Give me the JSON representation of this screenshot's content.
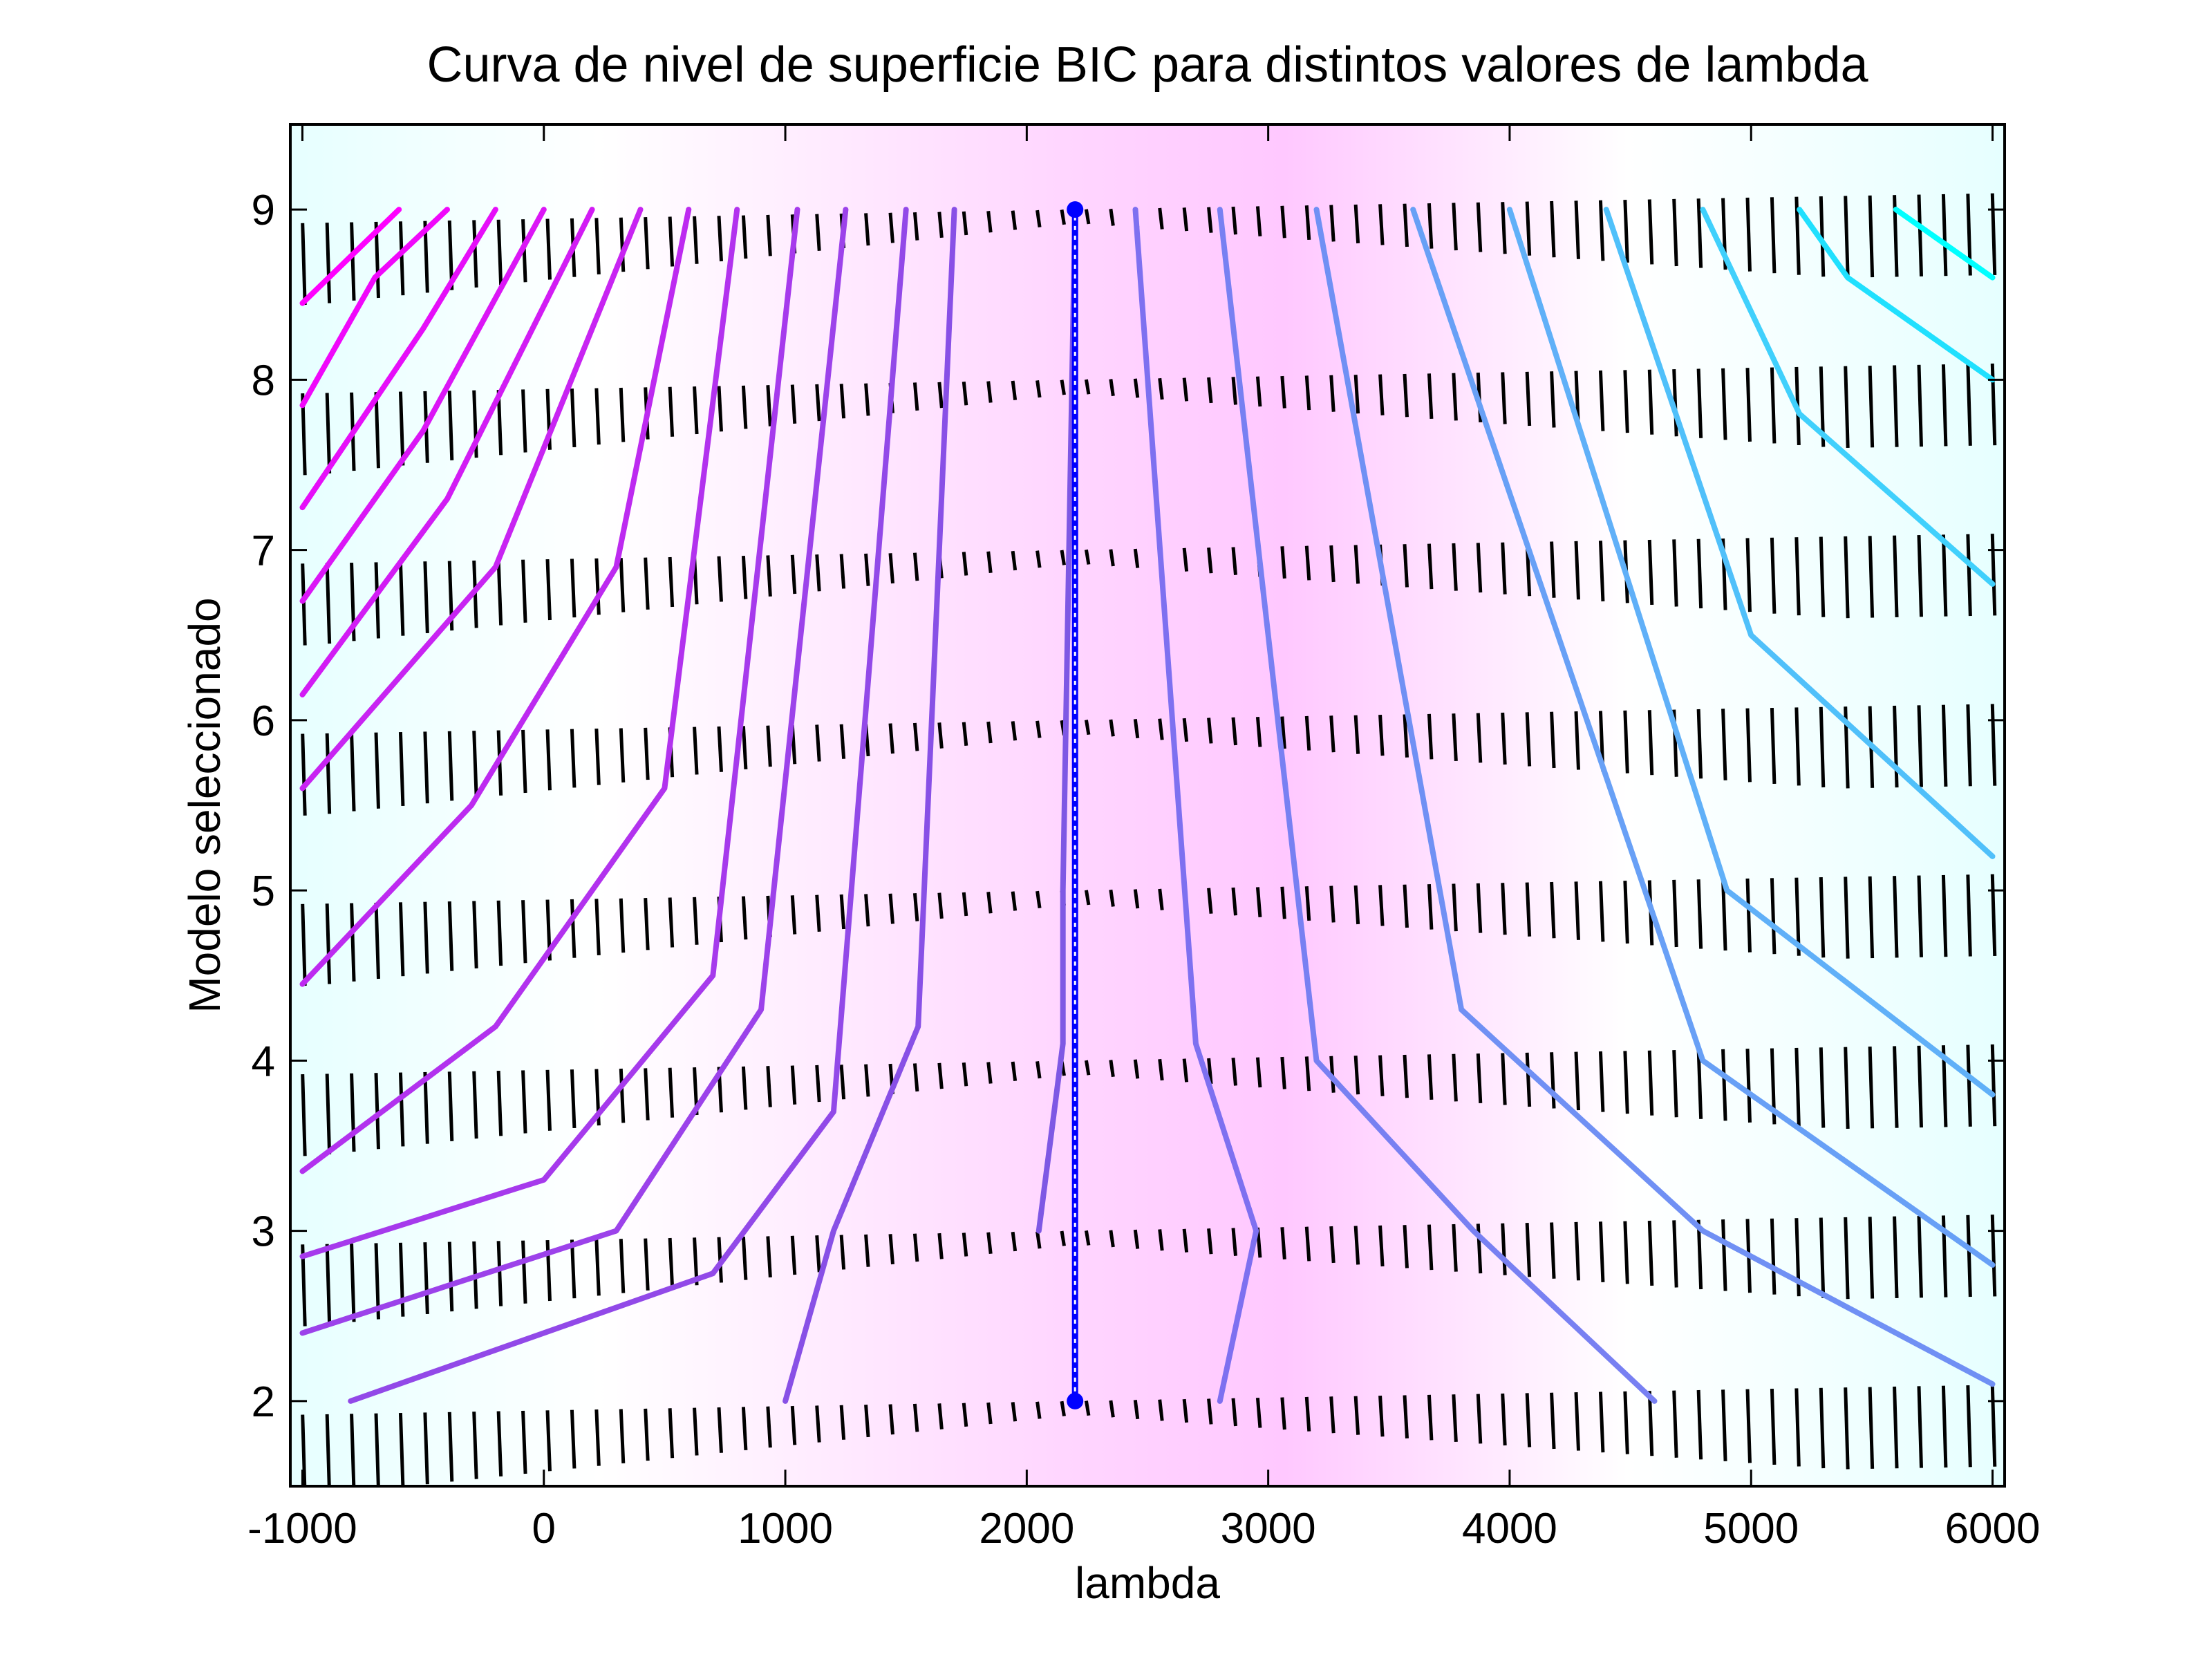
{
  "chart_data": {
    "type": "contour",
    "title": "Curva de nivel de superficie BIC para distintos valores de lambda",
    "xlabel": "lambda",
    "ylabel": "Modelo seleccionado",
    "xlim": [
      -1050,
      6050
    ],
    "ylim": [
      1.5,
      9.5
    ],
    "xticks": [
      -1000,
      0,
      1000,
      2000,
      3000,
      4000,
      5000,
      6000
    ],
    "yticks": [
      2,
      3,
      4,
      5,
      6,
      7,
      8,
      9
    ],
    "xtick_labels": [
      "-1000",
      "0",
      "1000",
      "2000",
      "3000",
      "4000",
      "5000",
      "6000"
    ],
    "ytick_labels": [
      "2",
      "3",
      "4",
      "5",
      "6",
      "7",
      "8",
      "9"
    ],
    "grid": false,
    "legend": "none",
    "colormap": [
      "#ff00ff",
      "#8080ff",
      "#00ffff"
    ],
    "background_colors": {
      "low": "#e6ffff",
      "high": "#ffc0ff"
    },
    "minimum_line": {
      "lambda": 2200,
      "models": [
        2,
        3,
        4,
        5,
        6,
        7,
        8,
        9
      ],
      "color": "#0000ff"
    },
    "level_curves": [
      {
        "color": "#ff00ff",
        "points": [
          [
            -1000,
            8.45
          ],
          [
            -600,
            9
          ]
        ]
      },
      {
        "color": "#f008fb",
        "points": [
          [
            -1000,
            7.85
          ],
          [
            -700,
            8.6
          ],
          [
            -400,
            9
          ]
        ]
      },
      {
        "color": "#e60ef9",
        "points": [
          [
            -1000,
            7.25
          ],
          [
            -500,
            8.3
          ],
          [
            -200,
            9
          ]
        ]
      },
      {
        "color": "#db16f6",
        "points": [
          [
            -1000,
            6.7
          ],
          [
            -500,
            7.7
          ],
          [
            0,
            9
          ]
        ]
      },
      {
        "color": "#d21cf4",
        "points": [
          [
            -1000,
            6.15
          ],
          [
            -400,
            7.3
          ],
          [
            200,
            9
          ]
        ]
      },
      {
        "color": "#c824f2",
        "points": [
          [
            -1000,
            5.6
          ],
          [
            -200,
            6.9
          ],
          [
            400,
            9
          ]
        ]
      },
      {
        "color": "#bd2af0",
        "points": [
          [
            -1000,
            4.45
          ],
          [
            -300,
            5.5
          ],
          [
            300,
            6.9
          ],
          [
            600,
            9
          ]
        ]
      },
      {
        "color": "#b232ee",
        "points": [
          [
            -1000,
            3.35
          ],
          [
            -200,
            4.2
          ],
          [
            500,
            5.6
          ],
          [
            800,
            9
          ]
        ]
      },
      {
        "color": "#a63aec",
        "points": [
          [
            -1000,
            2.85
          ],
          [
            0,
            3.3
          ],
          [
            700,
            4.5
          ],
          [
            1050,
            9
          ]
        ]
      },
      {
        "color": "#9c42ea",
        "points": [
          [
            -1000,
            2.4
          ],
          [
            300,
            3.0
          ],
          [
            900,
            4.3
          ],
          [
            1250,
            9
          ]
        ]
      },
      {
        "color": "#9249e8",
        "points": [
          [
            -800,
            2.0
          ],
          [
            700,
            2.75
          ],
          [
            1200,
            3.7
          ],
          [
            1500,
            9
          ]
        ]
      },
      {
        "color": "#8850e6",
        "points": [
          [
            1000,
            2.0
          ],
          [
            1200,
            3.0
          ],
          [
            1550,
            4.2
          ],
          [
            1700,
            9
          ]
        ]
      },
      {
        "color": "#7e58e4",
        "points": [
          [
            2050,
            3.0
          ],
          [
            2150,
            4.1
          ],
          [
            2150,
            5.0
          ],
          [
            2200,
            9
          ]
        ]
      },
      {
        "color": "#7e70f0",
        "points": [
          [
            2800,
            2.0
          ],
          [
            2950,
            3.0
          ],
          [
            2700,
            4.1
          ],
          [
            2450,
            9
          ]
        ]
      },
      {
        "color": "#7880f2",
        "points": [
          [
            4600,
            2.0
          ],
          [
            3850,
            3.0
          ],
          [
            3200,
            4.0
          ],
          [
            2800,
            9
          ]
        ]
      },
      {
        "color": "#7090f4",
        "points": [
          [
            6000,
            2.1
          ],
          [
            4800,
            3.0
          ],
          [
            3800,
            4.3
          ],
          [
            3200,
            9
          ]
        ]
      },
      {
        "color": "#68a0f6",
        "points": [
          [
            6000,
            2.8
          ],
          [
            4800,
            4.0
          ],
          [
            3600,
            9
          ]
        ]
      },
      {
        "color": "#60b0f8",
        "points": [
          [
            6000,
            3.8
          ],
          [
            4900,
            5.0
          ],
          [
            4000,
            9
          ]
        ]
      },
      {
        "color": "#50c0fa",
        "points": [
          [
            6000,
            5.2
          ],
          [
            5000,
            6.5
          ],
          [
            4400,
            9
          ]
        ]
      },
      {
        "color": "#40d0fc",
        "points": [
          [
            6000,
            6.8
          ],
          [
            5200,
            7.8
          ],
          [
            4800,
            9
          ]
        ]
      },
      {
        "color": "#20e0fe",
        "points": [
          [
            6000,
            8.0
          ],
          [
            5400,
            8.6
          ],
          [
            5200,
            9
          ]
        ]
      },
      {
        "color": "#00ffff",
        "points": [
          [
            6000,
            8.6
          ],
          [
            5600,
            9
          ]
        ]
      }
    ]
  }
}
